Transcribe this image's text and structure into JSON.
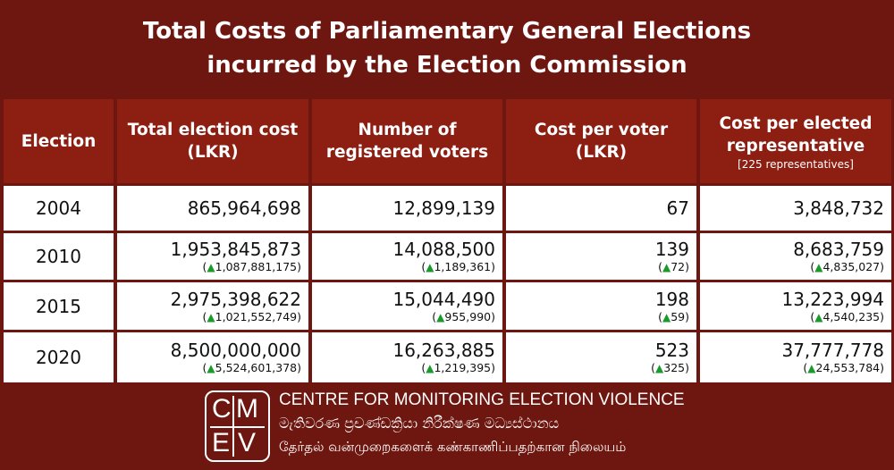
{
  "title": {
    "line1": "Total Costs of Parliamentary General Elections",
    "line2": "incurred by the Election Commission"
  },
  "table": {
    "headers": {
      "election": "Election",
      "total_cost_l1": "Total election cost",
      "total_cost_l2": "(LKR)",
      "voters_l1": "Number of",
      "voters_l2": "registered voters",
      "per_voter_l1": "Cost per voter",
      "per_voter_l2": "(LKR)",
      "per_rep_l1": "Cost per elected",
      "per_rep_l2": "representative",
      "per_rep_note": "[225 representatives]"
    },
    "increase_icon": "green-up-triangle",
    "rows": [
      {
        "year": "2004",
        "total": "865,964,698",
        "voters": "12,899,139",
        "per_voter": "67",
        "per_rep": "3,848,732",
        "total_chg": "",
        "voters_chg": "",
        "per_voter_chg": "",
        "per_rep_chg": ""
      },
      {
        "year": "2010",
        "total": "1,953,845,873",
        "voters": "14,088,500",
        "per_voter": "139",
        "per_rep": "8,683,759",
        "total_chg": "1,087,881,175",
        "voters_chg": "1,189,361",
        "per_voter_chg": "72",
        "per_rep_chg": "4,835,027"
      },
      {
        "year": "2015",
        "total": "2,975,398,622",
        "voters": "15,044,490",
        "per_voter": "198",
        "per_rep": "13,223,994",
        "total_chg": "1,021,552,749",
        "voters_chg": "955,990",
        "per_voter_chg": "59",
        "per_rep_chg": "4,540,235"
      },
      {
        "year": "2020",
        "total": "8,500,000,000",
        "voters": "16,263,885",
        "per_voter": "523",
        "per_rep": "37,777,778",
        "total_chg": "5,524,601,378",
        "voters_chg": "1,219,395",
        "per_voter_chg": "325",
        "per_rep_chg": "24,553,784"
      }
    ]
  },
  "footer": {
    "logo_letters": [
      "C",
      "M",
      "E",
      "V"
    ],
    "org_english": "CENTRE FOR MONITORING ELECTION VIOLENCE",
    "org_sinhala": "මැතිවරණ ප්‍රචණ්ඩක්‍රියා නිරීක්ෂණ මධ්‍යස්ථානය",
    "org_tamil": "தேர்தல் வன்முறைகளைக் கண்காணிப்பதற்கான நிலையம்"
  },
  "colors": {
    "background": "#6e1710",
    "header_cell": "#8c1e12",
    "increase": "#1a9a2c"
  }
}
